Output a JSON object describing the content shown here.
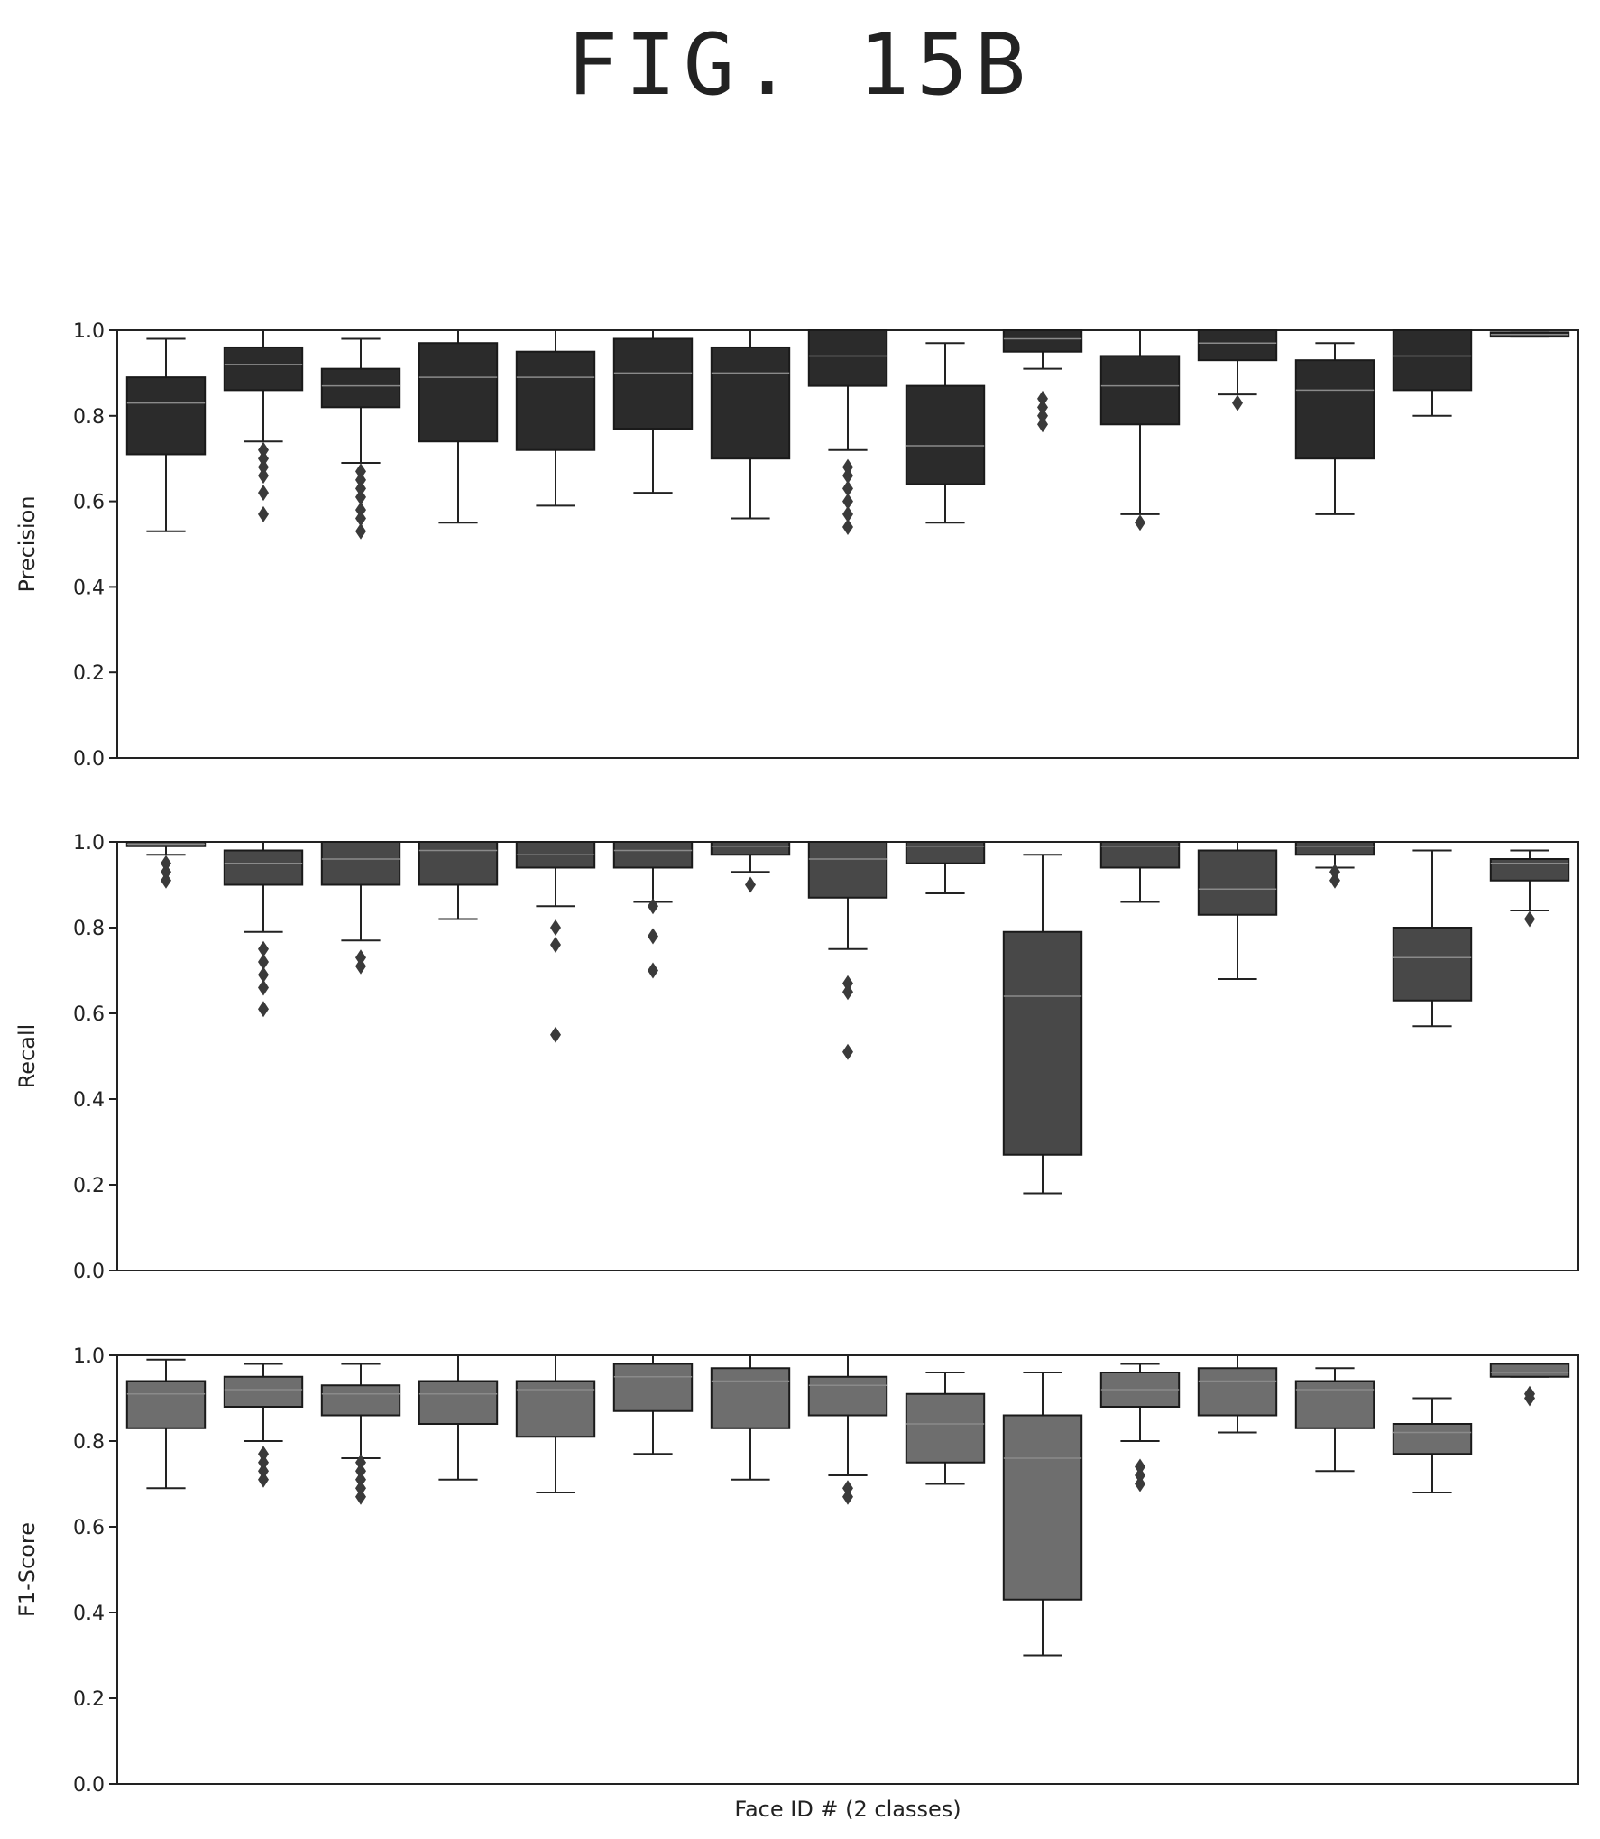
{
  "figure_title": "FIG. 15B",
  "chart_data": [
    {
      "type": "box",
      "ylabel": "Precision",
      "xlabel": "",
      "ylim": [
        0,
        1
      ],
      "yticks": [
        "0.0",
        "0.2",
        "0.4",
        "0.6",
        "0.8",
        "1.0"
      ],
      "box_color": "#2b2b2b",
      "boxes": [
        {
          "q1": 0.71,
          "med": 0.83,
          "q3": 0.89,
          "lo": 0.53,
          "hi": 0.98,
          "out": []
        },
        {
          "q1": 0.86,
          "med": 0.92,
          "q3": 0.96,
          "lo": 0.74,
          "hi": 1.0,
          "out": [
            0.57,
            0.62,
            0.66,
            0.68,
            0.7,
            0.72
          ]
        },
        {
          "q1": 0.82,
          "med": 0.87,
          "q3": 0.91,
          "lo": 0.69,
          "hi": 0.98,
          "out": [
            0.53,
            0.56,
            0.58,
            0.61,
            0.63,
            0.65,
            0.67
          ]
        },
        {
          "q1": 0.74,
          "med": 0.89,
          "q3": 0.97,
          "lo": 0.55,
          "hi": 1.0,
          "out": []
        },
        {
          "q1": 0.72,
          "med": 0.89,
          "q3": 0.95,
          "lo": 0.59,
          "hi": 1.0,
          "out": []
        },
        {
          "q1": 0.77,
          "med": 0.9,
          "q3": 0.98,
          "lo": 0.62,
          "hi": 1.0,
          "out": []
        },
        {
          "q1": 0.7,
          "med": 0.9,
          "q3": 0.96,
          "lo": 0.56,
          "hi": 1.0,
          "out": []
        },
        {
          "q1": 0.87,
          "med": 0.94,
          "q3": 1.0,
          "lo": 0.72,
          "hi": 1.0,
          "out": [
            0.54,
            0.57,
            0.6,
            0.63,
            0.66,
            0.68
          ]
        },
        {
          "q1": 0.64,
          "med": 0.73,
          "q3": 0.87,
          "lo": 0.55,
          "hi": 0.97,
          "out": []
        },
        {
          "q1": 0.95,
          "med": 0.98,
          "q3": 1.0,
          "lo": 0.91,
          "hi": 1.0,
          "out": [
            0.78,
            0.8,
            0.82,
            0.84
          ]
        },
        {
          "q1": 0.78,
          "med": 0.87,
          "q3": 0.94,
          "lo": 0.57,
          "hi": 1.0,
          "out": [
            0.55
          ]
        },
        {
          "q1": 0.93,
          "med": 0.97,
          "q3": 1.0,
          "lo": 0.85,
          "hi": 1.0,
          "out": [
            0.83
          ]
        },
        {
          "q1": 0.7,
          "med": 0.86,
          "q3": 0.93,
          "lo": 0.57,
          "hi": 0.97,
          "out": []
        },
        {
          "q1": 0.86,
          "med": 0.94,
          "q3": 1.0,
          "lo": 0.8,
          "hi": 1.0,
          "out": []
        },
        {
          "q1": 0.985,
          "med": 0.99,
          "q3": 0.995,
          "lo": 0.985,
          "hi": 0.995,
          "out": []
        }
      ]
    },
    {
      "type": "box",
      "ylabel": "Recall",
      "xlabel": "",
      "ylim": [
        0,
        1
      ],
      "yticks": [
        "0.0",
        "0.2",
        "0.4",
        "0.6",
        "0.8",
        "1.0"
      ],
      "box_color": "#484848",
      "boxes": [
        {
          "q1": 0.99,
          "med": 0.995,
          "q3": 1.0,
          "lo": 0.97,
          "hi": 1.0,
          "out": [
            0.91,
            0.93,
            0.95
          ]
        },
        {
          "q1": 0.9,
          "med": 0.95,
          "q3": 0.98,
          "lo": 0.79,
          "hi": 1.0,
          "out": [
            0.61,
            0.66,
            0.69,
            0.72,
            0.75
          ]
        },
        {
          "q1": 0.9,
          "med": 0.96,
          "q3": 1.0,
          "lo": 0.77,
          "hi": 1.0,
          "out": [
            0.71,
            0.73
          ]
        },
        {
          "q1": 0.9,
          "med": 0.98,
          "q3": 1.0,
          "lo": 0.82,
          "hi": 1.0,
          "out": []
        },
        {
          "q1": 0.94,
          "med": 0.97,
          "q3": 1.0,
          "lo": 0.85,
          "hi": 1.0,
          "out": [
            0.55,
            0.76,
            0.8
          ]
        },
        {
          "q1": 0.94,
          "med": 0.98,
          "q3": 1.0,
          "lo": 0.86,
          "hi": 1.0,
          "out": [
            0.7,
            0.78,
            0.85
          ]
        },
        {
          "q1": 0.97,
          "med": 0.99,
          "q3": 1.0,
          "lo": 0.93,
          "hi": 1.0,
          "out": [
            0.9
          ]
        },
        {
          "q1": 0.87,
          "med": 0.96,
          "q3": 1.0,
          "lo": 0.75,
          "hi": 1.0,
          "out": [
            0.51,
            0.65,
            0.67
          ]
        },
        {
          "q1": 0.95,
          "med": 0.99,
          "q3": 1.0,
          "lo": 0.88,
          "hi": 1.0,
          "out": []
        },
        {
          "q1": 0.27,
          "med": 0.64,
          "q3": 0.79,
          "lo": 0.18,
          "hi": 0.97,
          "out": []
        },
        {
          "q1": 0.94,
          "med": 0.99,
          "q3": 1.0,
          "lo": 0.86,
          "hi": 1.0,
          "out": []
        },
        {
          "q1": 0.83,
          "med": 0.89,
          "q3": 0.98,
          "lo": 0.68,
          "hi": 1.0,
          "out": []
        },
        {
          "q1": 0.97,
          "med": 0.99,
          "q3": 1.0,
          "lo": 0.94,
          "hi": 1.0,
          "out": [
            0.91,
            0.93
          ]
        },
        {
          "q1": 0.63,
          "med": 0.73,
          "q3": 0.8,
          "lo": 0.57,
          "hi": 0.98,
          "out": []
        },
        {
          "q1": 0.91,
          "med": 0.95,
          "q3": 0.96,
          "lo": 0.84,
          "hi": 0.98,
          "out": [
            0.82
          ]
        }
      ]
    },
    {
      "type": "box",
      "ylabel": "F1-Score",
      "xlabel": "Face ID # (2 classes)",
      "ylim": [
        0,
        1
      ],
      "yticks": [
        "0.0",
        "0.2",
        "0.4",
        "0.6",
        "0.8",
        "1.0"
      ],
      "box_color": "#6e6e6e",
      "boxes": [
        {
          "q1": 0.83,
          "med": 0.91,
          "q3": 0.94,
          "lo": 0.69,
          "hi": 0.99,
          "out": []
        },
        {
          "q1": 0.88,
          "med": 0.92,
          "q3": 0.95,
          "lo": 0.8,
          "hi": 0.98,
          "out": [
            0.71,
            0.73,
            0.75,
            0.77
          ]
        },
        {
          "q1": 0.86,
          "med": 0.91,
          "q3": 0.93,
          "lo": 0.76,
          "hi": 0.98,
          "out": [
            0.67,
            0.69,
            0.71,
            0.73,
            0.75
          ]
        },
        {
          "q1": 0.84,
          "med": 0.91,
          "q3": 0.94,
          "lo": 0.71,
          "hi": 1.0,
          "out": []
        },
        {
          "q1": 0.81,
          "med": 0.92,
          "q3": 0.94,
          "lo": 0.68,
          "hi": 1.0,
          "out": []
        },
        {
          "q1": 0.87,
          "med": 0.95,
          "q3": 0.98,
          "lo": 0.77,
          "hi": 1.0,
          "out": []
        },
        {
          "q1": 0.83,
          "med": 0.94,
          "q3": 0.97,
          "lo": 0.71,
          "hi": 1.0,
          "out": []
        },
        {
          "q1": 0.86,
          "med": 0.93,
          "q3": 0.95,
          "lo": 0.72,
          "hi": 1.0,
          "out": [
            0.67,
            0.69
          ]
        },
        {
          "q1": 0.75,
          "med": 0.84,
          "q3": 0.91,
          "lo": 0.7,
          "hi": 0.96,
          "out": []
        },
        {
          "q1": 0.43,
          "med": 0.76,
          "q3": 0.86,
          "lo": 0.3,
          "hi": 0.96,
          "out": []
        },
        {
          "q1": 0.88,
          "med": 0.92,
          "q3": 0.96,
          "lo": 0.8,
          "hi": 0.98,
          "out": [
            0.7,
            0.72,
            0.74
          ]
        },
        {
          "q1": 0.86,
          "med": 0.94,
          "q3": 0.97,
          "lo": 0.82,
          "hi": 1.0,
          "out": []
        },
        {
          "q1": 0.83,
          "med": 0.92,
          "q3": 0.94,
          "lo": 0.73,
          "hi": 0.97,
          "out": []
        },
        {
          "q1": 0.77,
          "med": 0.82,
          "q3": 0.84,
          "lo": 0.68,
          "hi": 0.9,
          "out": []
        },
        {
          "q1": 0.95,
          "med": 0.96,
          "q3": 0.98,
          "lo": 0.95,
          "hi": 0.98,
          "out": [
            0.9,
            0.91
          ]
        }
      ]
    }
  ]
}
